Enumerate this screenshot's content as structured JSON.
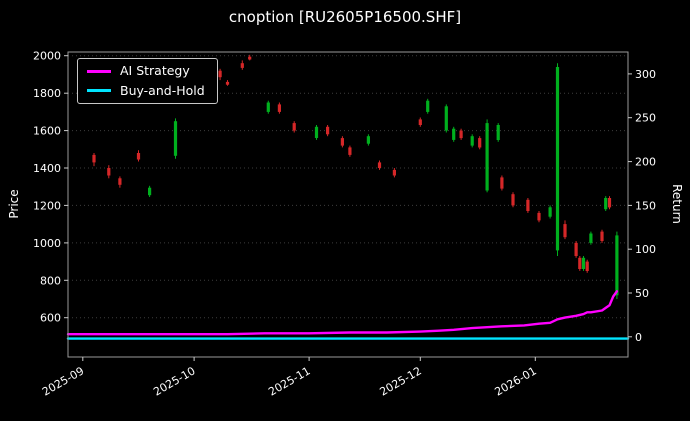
{
  "title": "cnoption [RU2605P16500.SHF]",
  "axes": {
    "left_label": "Price",
    "right_label": "Return",
    "price_ticks": [
      600,
      800,
      1000,
      1200,
      1400,
      1600,
      1800,
      2000
    ],
    "return_ticks": [
      0,
      50,
      100,
      150,
      200,
      250,
      300
    ],
    "price_lim": [
      390,
      2020
    ],
    "return_lim": [
      -23,
      325
    ],
    "x_lim": [
      "2025-08-28",
      "2026-01-26"
    ],
    "x_ticks": [
      {
        "date": "2025-09-01",
        "label": "2025-09"
      },
      {
        "date": "2025-10-01",
        "label": "2025-10"
      },
      {
        "date": "2025-11-01",
        "label": "2025-11"
      },
      {
        "date": "2025-12-01",
        "label": "2025-12"
      },
      {
        "date": "2026-01-01",
        "label": "2026-01"
      }
    ],
    "grid": "horizontal-dotted"
  },
  "chart_data": {
    "type": "candlestick+line",
    "title": "cnoption [RU2605P16500.SHF]",
    "price_axis": {
      "label": "Price",
      "range": [
        390,
        2020
      ]
    },
    "return_axis": {
      "label": "Return",
      "range": [
        -23,
        325
      ]
    },
    "legend_position": "upper-left",
    "up_color": "#00b01e",
    "down_color": "#d62728",
    "candles": [
      [
        "2025-09-04",
        1470,
        1480,
        1410,
        1430
      ],
      [
        "2025-09-08",
        1400,
        1415,
        1345,
        1360
      ],
      [
        "2025-09-11",
        1345,
        1355,
        1295,
        1310
      ],
      [
        "2025-09-16",
        1480,
        1495,
        1435,
        1445
      ],
      [
        "2025-09-19",
        1255,
        1305,
        1245,
        1295
      ],
      [
        "2025-09-26",
        1465,
        1665,
        1450,
        1650
      ],
      [
        "2025-10-03",
        1800,
        1815,
        1750,
        1765
      ],
      [
        "2025-10-08",
        1920,
        1930,
        1870,
        1885
      ],
      [
        "2025-10-10",
        1860,
        1870,
        1840,
        1845
      ],
      [
        "2025-10-14",
        1960,
        1975,
        1925,
        1935
      ],
      [
        "2025-10-16",
        1995,
        2005,
        1975,
        1980
      ],
      [
        "2025-10-21",
        1700,
        1760,
        1690,
        1750
      ],
      [
        "2025-10-24",
        1740,
        1750,
        1690,
        1700
      ],
      [
        "2025-10-28",
        1640,
        1650,
        1590,
        1600
      ],
      [
        "2025-11-03",
        1560,
        1630,
        1550,
        1620
      ],
      [
        "2025-11-06",
        1620,
        1630,
        1570,
        1580
      ],
      [
        "2025-11-10",
        1560,
        1570,
        1510,
        1520
      ],
      [
        "2025-11-12",
        1510,
        1520,
        1460,
        1470
      ],
      [
        "2025-11-17",
        1530,
        1580,
        1520,
        1570
      ],
      [
        "2025-11-20",
        1430,
        1440,
        1390,
        1400
      ],
      [
        "2025-11-24",
        1390,
        1400,
        1350,
        1360
      ],
      [
        "2025-12-01",
        1660,
        1670,
        1620,
        1630
      ],
      [
        "2025-12-03",
        1700,
        1770,
        1690,
        1760
      ],
      [
        "2025-12-08",
        1600,
        1740,
        1590,
        1730
      ],
      [
        "2025-12-10",
        1550,
        1620,
        1540,
        1610
      ],
      [
        "2025-12-12",
        1600,
        1610,
        1550,
        1560
      ],
      [
        "2025-12-15",
        1520,
        1580,
        1510,
        1570
      ],
      [
        "2025-12-17",
        1560,
        1570,
        1500,
        1510
      ],
      [
        "2025-12-19",
        1280,
        1660,
        1270,
        1640
      ],
      [
        "2025-12-22",
        1550,
        1640,
        1540,
        1630
      ],
      [
        "2025-12-23",
        1350,
        1360,
        1280,
        1290
      ],
      [
        "2025-12-26",
        1260,
        1270,
        1190,
        1200
      ],
      [
        "2025-12-30",
        1230,
        1240,
        1160,
        1170
      ],
      [
        "2026-01-02",
        1160,
        1170,
        1110,
        1120
      ],
      [
        "2026-01-05",
        1140,
        1200,
        1130,
        1190
      ],
      [
        "2026-01-07",
        960,
        1960,
        930,
        1940
      ],
      [
        "2026-01-09",
        1100,
        1120,
        1020,
        1030
      ],
      [
        "2026-01-12",
        1000,
        1010,
        920,
        930
      ],
      [
        "2026-01-13",
        920,
        930,
        850,
        860
      ],
      [
        "2026-01-14",
        860,
        930,
        850,
        920
      ],
      [
        "2026-01-15",
        900,
        910,
        840,
        850
      ],
      [
        "2026-01-16",
        1000,
        1060,
        990,
        1050
      ],
      [
        "2026-01-19",
        1060,
        1070,
        1000,
        1010
      ],
      [
        "2026-01-20",
        1180,
        1250,
        1170,
        1240
      ],
      [
        "2026-01-21",
        1240,
        1250,
        1180,
        1190
      ],
      [
        "2026-01-23",
        720,
        1060,
        700,
        1040
      ]
    ],
    "series": [
      {
        "name": "AI Strategy",
        "color": "#ff00ff",
        "axis": "return",
        "points": [
          [
            "2025-08-28",
            3
          ],
          [
            "2025-09-10",
            3
          ],
          [
            "2025-09-25",
            3
          ],
          [
            "2025-10-10",
            3
          ],
          [
            "2025-10-20",
            4
          ],
          [
            "2025-11-01",
            4
          ],
          [
            "2025-11-12",
            5
          ],
          [
            "2025-11-22",
            5
          ],
          [
            "2025-12-01",
            6
          ],
          [
            "2025-12-06",
            7
          ],
          [
            "2025-12-10",
            8
          ],
          [
            "2025-12-15",
            10
          ],
          [
            "2025-12-19",
            11
          ],
          [
            "2025-12-23",
            12
          ],
          [
            "2025-12-29",
            13
          ],
          [
            "2026-01-02",
            15
          ],
          [
            "2026-01-05",
            16
          ],
          [
            "2026-01-07",
            20
          ],
          [
            "2026-01-09",
            22
          ],
          [
            "2026-01-12",
            24
          ],
          [
            "2026-01-13",
            25
          ],
          [
            "2026-01-14",
            26
          ],
          [
            "2026-01-15",
            28
          ],
          [
            "2026-01-16",
            28
          ],
          [
            "2026-01-19",
            30
          ],
          [
            "2026-01-20",
            33
          ],
          [
            "2026-01-21",
            36
          ],
          [
            "2026-01-22",
            46
          ],
          [
            "2026-01-23",
            52
          ]
        ]
      },
      {
        "name": "Buy-and-Hold",
        "color": "#00e5ff",
        "axis": "return",
        "points": [
          [
            "2025-08-28",
            -2
          ],
          [
            "2026-01-26",
            -2
          ]
        ]
      }
    ]
  }
}
